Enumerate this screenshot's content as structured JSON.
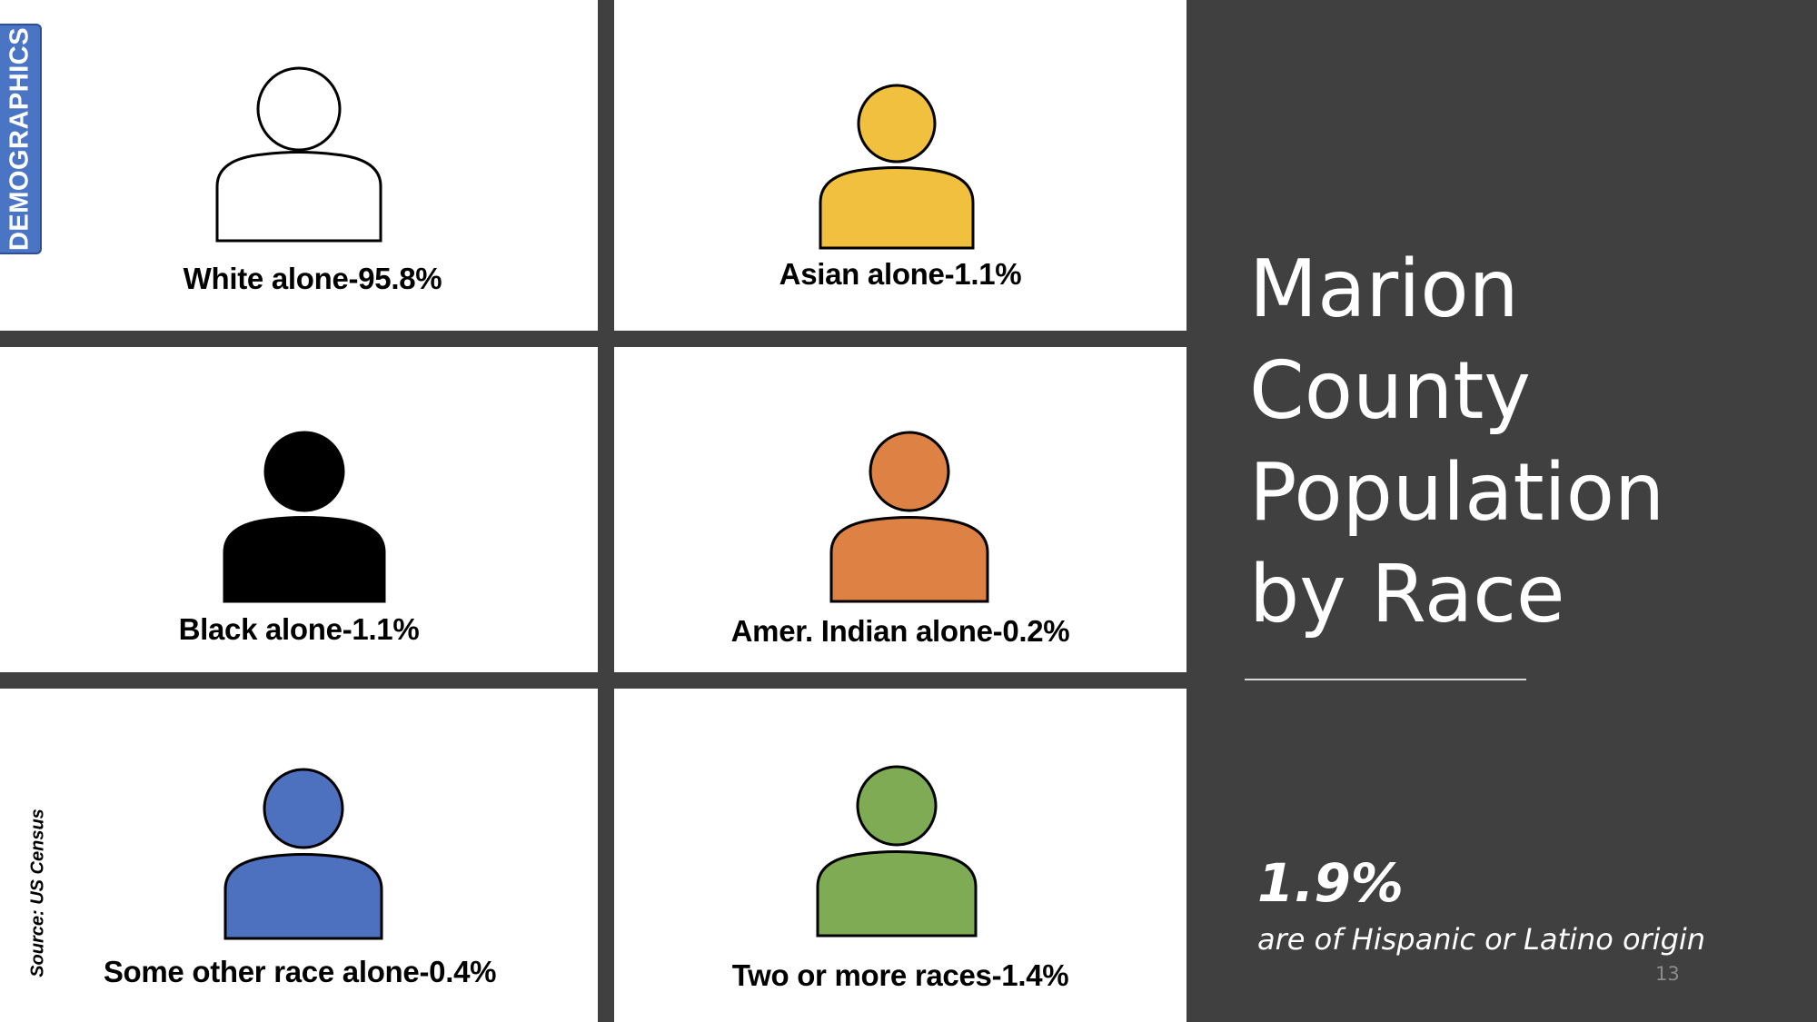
{
  "side_tab": {
    "label": "DEMOGRAPHICS"
  },
  "source": {
    "text": "Source:  US Census"
  },
  "cells": [
    {
      "label": "White alone-95.8%",
      "fill": "#ffffff"
    },
    {
      "label": "Asian alone-1.1%",
      "fill": "#f2c03f"
    },
    {
      "label": "Black alone-1.1%",
      "fill": "#000000"
    },
    {
      "label": "Amer. Indian alone-0.2%",
      "fill": "#dd8244"
    },
    {
      "label": "Some other race alone-0.4%",
      "fill": "#4e71bf"
    },
    {
      "label": "Two or more races-1.4%",
      "fill": "#7fab55"
    }
  ],
  "title": {
    "line1": "Marion",
    "line2": "County",
    "line3": "Population",
    "line4": "by Race"
  },
  "stat": {
    "value": "1.9%",
    "text": "are of Hispanic or Latino origin"
  },
  "page_number": "13",
  "colors": {
    "background": "#404040",
    "tab": "#4a74c4"
  }
}
